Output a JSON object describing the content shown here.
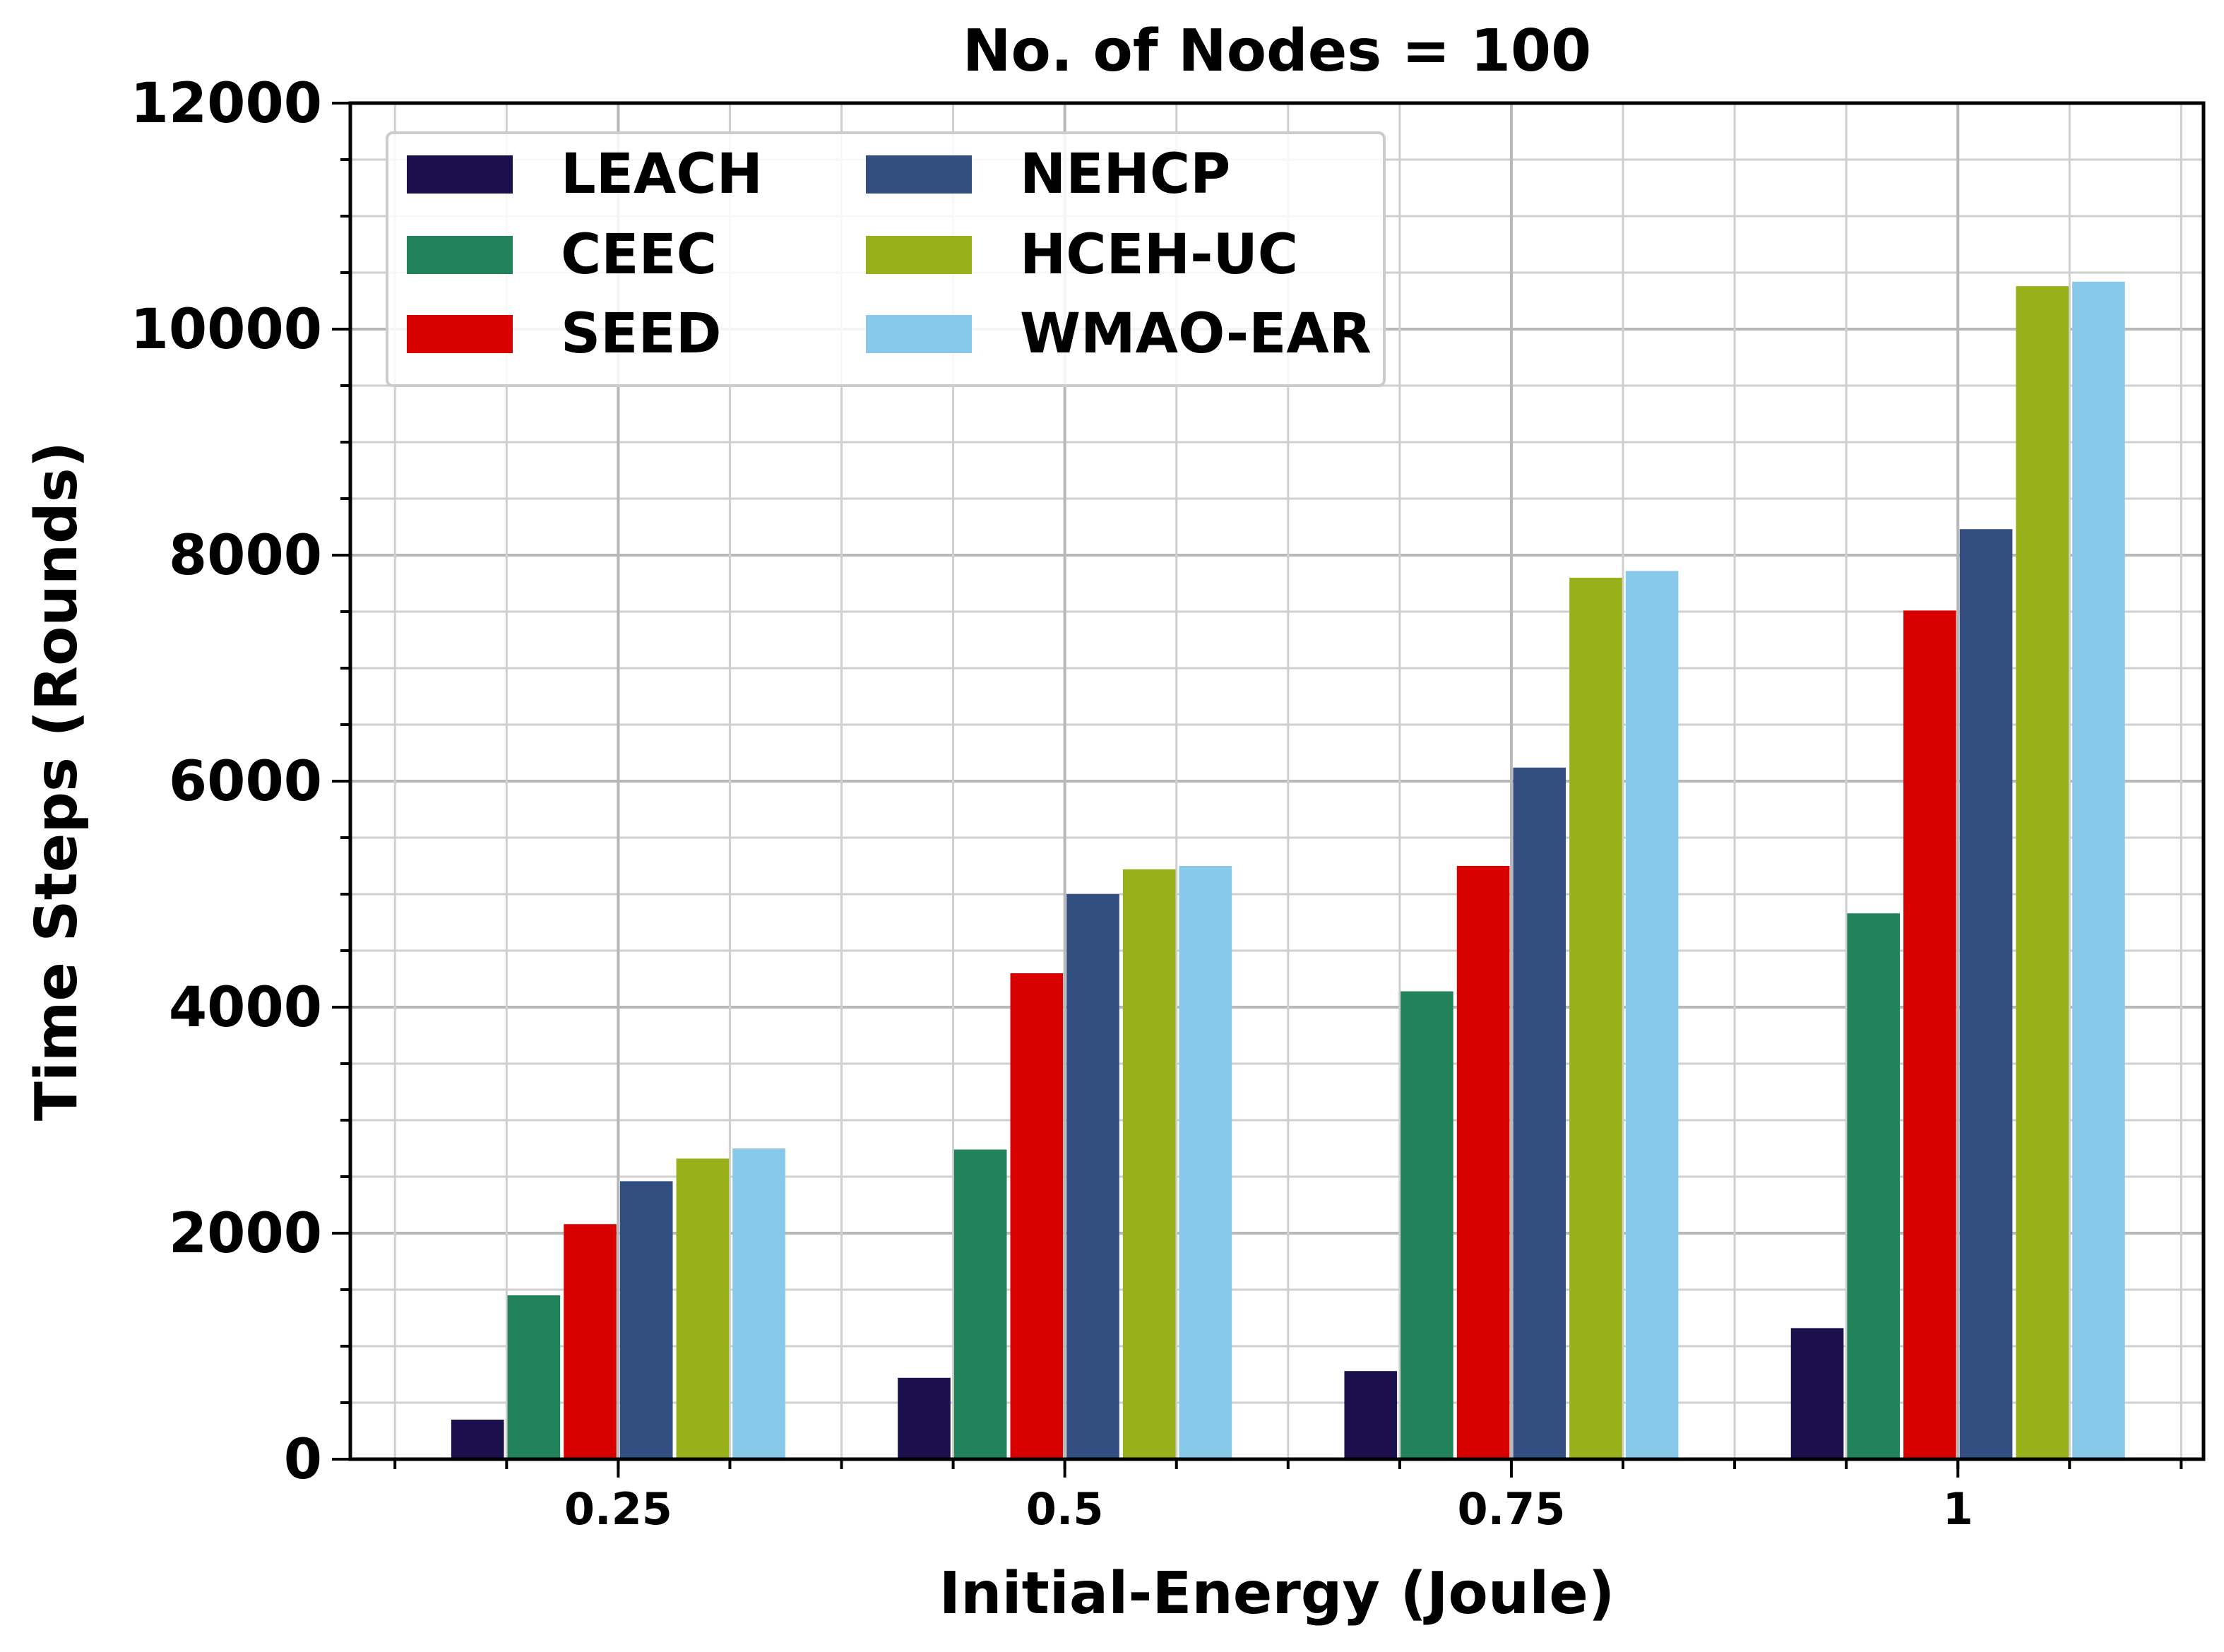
{
  "chart_data": {
    "type": "bar",
    "title": "No. of Nodes = 100",
    "xlabel": "Initial-Energy (Joule)",
    "ylabel": "Time Steps (Rounds)",
    "categories": [
      "0.25",
      "0.5",
      "0.75",
      "1"
    ],
    "ylim": [
      0,
      12000
    ],
    "yticks": [
      0,
      2000,
      4000,
      6000,
      8000,
      10000,
      12000
    ],
    "yticks_labels": [
      "0",
      "2000",
      "4000",
      "6000",
      "8000",
      "10000",
      "12000"
    ],
    "grid": true,
    "legend_position": "top-left",
    "series": [
      {
        "name": "LEACH",
        "color": "#1c0f4d",
        "values": [
          350,
          720,
          780,
          1160
        ]
      },
      {
        "name": "CEEC",
        "color": "#22835a",
        "values": [
          1450,
          2740,
          4140,
          4830
        ]
      },
      {
        "name": "SEED",
        "color": "#d90000",
        "values": [
          2080,
          4300,
          5250,
          7510
        ]
      },
      {
        "name": "NEHCP",
        "color": "#324d80",
        "values": [
          2460,
          5000,
          6120,
          8230
        ]
      },
      {
        "name": "HCEH-UC",
        "color": "#98b11a",
        "values": [
          2660,
          5220,
          7800,
          10380
        ]
      },
      {
        "name": "WMAO-EAR",
        "color": "#88c9ea",
        "values": [
          2750,
          5250,
          7860,
          10420
        ]
      }
    ]
  }
}
